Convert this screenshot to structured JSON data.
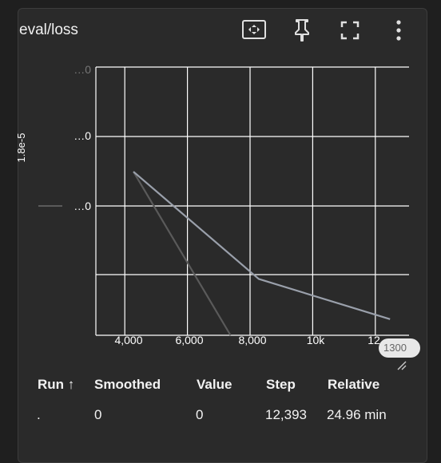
{
  "card": {
    "title": "eval/loss"
  },
  "toolbar": {
    "fit_icon": "fit-to-data-icon",
    "pin_icon": "pin-icon",
    "fullscreen_icon": "fullscreen-icon",
    "more_icon": "more-vert-icon"
  },
  "chart_data": {
    "type": "line",
    "ylabel": "1.8e-5",
    "y_tick_labels": [
      "…0",
      "…0",
      "…0"
    ],
    "x_tick_labels": [
      "4,000",
      "6,000",
      "8,000",
      "10k",
      "12"
    ],
    "xlim": [
      3000,
      13000
    ],
    "range_label": "1300",
    "series": [
      {
        "color": "#9aa0ab",
        "points": [
          [
            4200,
            0.61
          ],
          [
            8200,
            0.21
          ],
          [
            12393,
            0.06
          ]
        ]
      },
      {
        "color": "#5a5a5a",
        "points": [
          [
            4200,
            0.61
          ],
          [
            7300,
            0.0
          ]
        ]
      }
    ]
  },
  "table": {
    "headers": {
      "run": "Run ↑",
      "smoothed": "Smoothed",
      "value": "Value",
      "step": "Step",
      "relative": "Relative"
    },
    "rows": [
      {
        "run": ".",
        "smoothed": "0",
        "value": "0",
        "step": "12,393",
        "relative": "24.96 min"
      }
    ]
  }
}
